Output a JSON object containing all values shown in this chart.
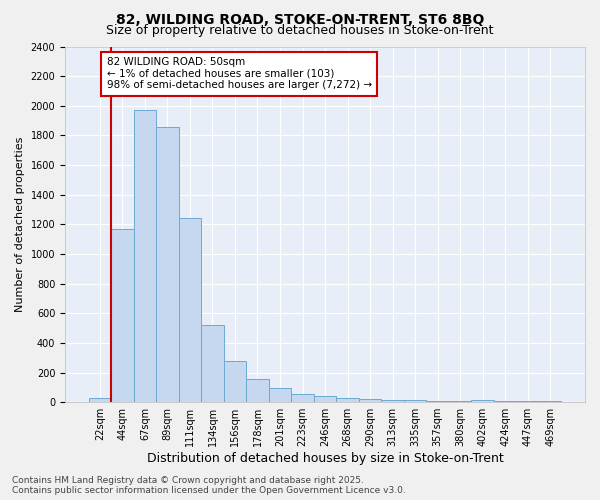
{
  "title1": "82, WILDING ROAD, STOKE-ON-TRENT, ST6 8BQ",
  "title2": "Size of property relative to detached houses in Stoke-on-Trent",
  "xlabel": "Distribution of detached houses by size in Stoke-on-Trent",
  "ylabel": "Number of detached properties",
  "categories": [
    "22sqm",
    "44sqm",
    "67sqm",
    "89sqm",
    "111sqm",
    "134sqm",
    "156sqm",
    "178sqm",
    "201sqm",
    "223sqm",
    "246sqm",
    "268sqm",
    "290sqm",
    "313sqm",
    "335sqm",
    "357sqm",
    "380sqm",
    "402sqm",
    "424sqm",
    "447sqm",
    "469sqm"
  ],
  "values": [
    30,
    1170,
    1970,
    1855,
    1245,
    520,
    275,
    158,
    95,
    55,
    45,
    30,
    20,
    18,
    15,
    5,
    5,
    15,
    5,
    5,
    5
  ],
  "bar_color": "#c5d8f0",
  "bar_edge_color": "#6aaad4",
  "vline_x_idx": 1,
  "vline_color": "#cc0000",
  "annotation_text": "82 WILDING ROAD: 50sqm\n← 1% of detached houses are smaller (103)\n98% of semi-detached houses are larger (7,272) →",
  "annotation_box_facecolor": "#ffffff",
  "annotation_box_edgecolor": "#cc0000",
  "fig_facecolor": "#f0f0f0",
  "ax_facecolor": "#e8eef8",
  "grid_color": "#ffffff",
  "footer_text": "Contains HM Land Registry data © Crown copyright and database right 2025.\nContains public sector information licensed under the Open Government Licence v3.0.",
  "ylim": [
    0,
    2400
  ],
  "yticks": [
    0,
    200,
    400,
    600,
    800,
    1000,
    1200,
    1400,
    1600,
    1800,
    2000,
    2200,
    2400
  ],
  "title_fontsize": 10,
  "subtitle_fontsize": 9,
  "ylabel_fontsize": 8,
  "xlabel_fontsize": 9,
  "tick_fontsize": 7,
  "annotation_fontsize": 7.5,
  "footer_fontsize": 6.5
}
